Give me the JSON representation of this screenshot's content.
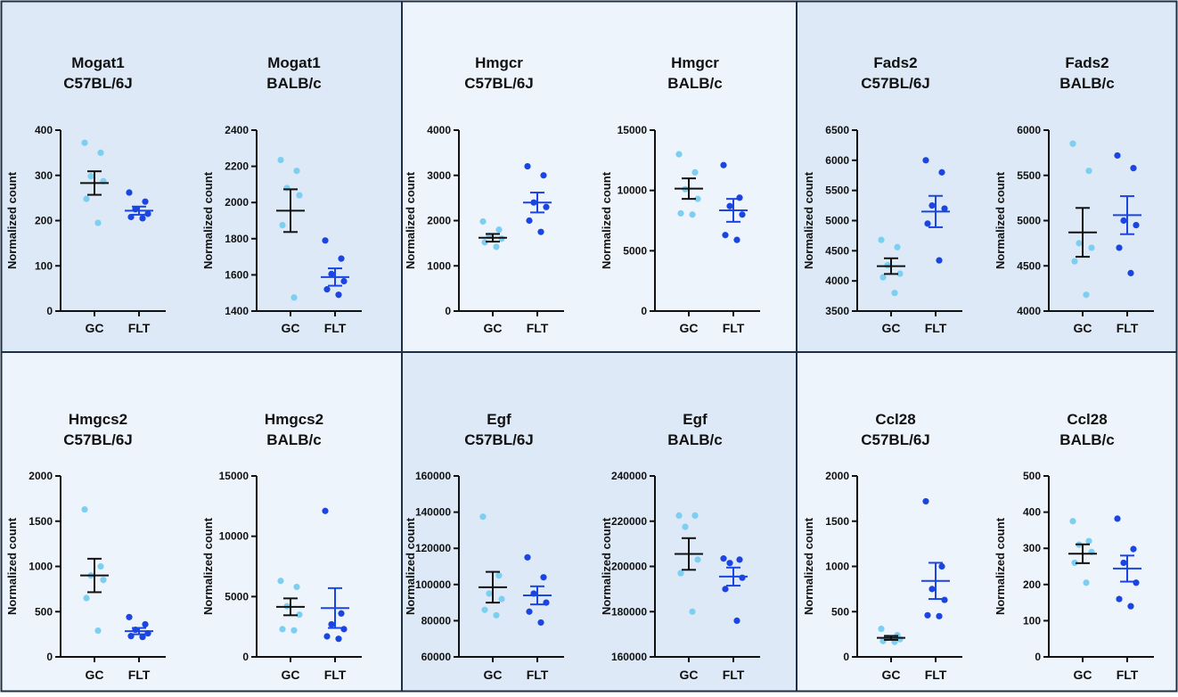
{
  "figure": {
    "colors": {
      "panel_dark": "#dde9f6",
      "panel_light": "#eef4fb",
      "border": "#1d2f45",
      "gc_points": "#7dcff1",
      "flt_points": "#1b45e0",
      "gc_bar": "#111111",
      "flt_bar": "#1b45e0"
    }
  },
  "chart_data": [
    {
      "type": "scatter",
      "gene": "Mogat1",
      "strain": "C57BL/6J",
      "title": [
        "Mogat1",
        "C57BL/6J"
      ],
      "ylabel": "Normalized count",
      "categories": [
        "GC",
        "FLT"
      ],
      "ylim": [
        0,
        400
      ],
      "yticks": [
        0,
        100,
        200,
        300,
        400
      ],
      "series": [
        {
          "name": "GC",
          "values": [
            372,
            350,
            298,
            287,
            248,
            195
          ],
          "mean": 283,
          "sem": 26
        },
        {
          "name": "FLT",
          "values": [
            262,
            242,
            225,
            215,
            208,
            205
          ],
          "mean": 222,
          "sem": 9
        }
      ]
    },
    {
      "type": "scatter",
      "gene": "Mogat1",
      "strain": "BALB/c",
      "title": [
        "Mogat1",
        "BALB/c"
      ],
      "ylabel": "Normalized count",
      "categories": [
        "GC",
        "FLT"
      ],
      "ylim": [
        1400,
        2400
      ],
      "yticks": [
        1400,
        1600,
        1800,
        2000,
        2200,
        2400
      ],
      "series": [
        {
          "name": "GC",
          "values": [
            2235,
            2175,
            2080,
            2040,
            1875,
            1475
          ],
          "mean": 1955,
          "sem": 118
        },
        {
          "name": "FLT",
          "values": [
            1790,
            1690,
            1605,
            1565,
            1520,
            1490
          ],
          "mean": 1588,
          "sem": 48
        }
      ]
    },
    {
      "type": "scatter",
      "gene": "Hmgcr",
      "strain": "C57BL/6J",
      "title": [
        "Hmgcr",
        "C57BL/6J"
      ],
      "ylabel": "Normalized count",
      "categories": [
        "GC",
        "FLT"
      ],
      "ylim": [
        0,
        4000
      ],
      "yticks": [
        0,
        1000,
        2000,
        3000,
        4000
      ],
      "series": [
        {
          "name": "GC",
          "values": [
            1980,
            1800,
            1660,
            1600,
            1520,
            1420
          ],
          "mean": 1620,
          "sem": 85
        },
        {
          "name": "FLT",
          "values": [
            3200,
            3000,
            2400,
            2300,
            2000,
            1750
          ],
          "mean": 2400,
          "sem": 220
        }
      ]
    },
    {
      "type": "scatter",
      "gene": "Hmgcr",
      "strain": "BALB/c",
      "title": [
        "Hmgcr",
        "BALB/c"
      ],
      "ylabel": "Normalized count",
      "categories": [
        "GC",
        "FLT"
      ],
      "ylim": [
        0,
        15000
      ],
      "yticks": [
        0,
        5000,
        10000,
        15000
      ],
      "series": [
        {
          "name": "GC",
          "values": [
            13000,
            11500,
            10100,
            9300,
            8100,
            8000
          ],
          "mean": 10150,
          "sem": 850
        },
        {
          "name": "FLT",
          "values": [
            12100,
            9400,
            8700,
            8000,
            6300,
            5900
          ],
          "mean": 8350,
          "sem": 950
        }
      ]
    },
    {
      "type": "scatter",
      "gene": "Fads2",
      "strain": "C57BL/6J",
      "title": [
        "Fads2",
        "C57BL/6J"
      ],
      "ylabel": "Normalized count",
      "categories": [
        "GC",
        "FLT"
      ],
      "ylim": [
        3500,
        6500
      ],
      "yticks": [
        3500,
        4000,
        4500,
        5000,
        5500,
        6000,
        6500
      ],
      "series": [
        {
          "name": "GC",
          "values": [
            4680,
            4560,
            4260,
            4120,
            4060,
            3800
          ],
          "mean": 4245,
          "sem": 130
        },
        {
          "name": "FLT",
          "values": [
            6000,
            5800,
            5250,
            5200,
            4950,
            4340
          ],
          "mean": 5150,
          "sem": 260
        }
      ]
    },
    {
      "type": "scatter",
      "gene": "Fads2",
      "strain": "BALB/c",
      "title": [
        "Fads2",
        "BALB/c"
      ],
      "ylabel": "Normalized count",
      "categories": [
        "GC",
        "FLT"
      ],
      "ylim": [
        4000,
        6000
      ],
      "yticks": [
        4000,
        4500,
        5000,
        5500,
        6000
      ],
      "series": [
        {
          "name": "GC",
          "values": [
            5850,
            5550,
            4750,
            4700,
            4550,
            4180
          ],
          "mean": 4870,
          "sem": 270
        },
        {
          "name": "FLT",
          "values": [
            5720,
            5580,
            5000,
            4950,
            4700,
            4420
          ],
          "mean": 5060,
          "sem": 210
        }
      ]
    },
    {
      "type": "scatter",
      "gene": "Hmgcs2",
      "strain": "C57BL/6J",
      "title": [
        "Hmgcs2",
        "C57BL/6J"
      ],
      "ylabel": "Normalized count",
      "categories": [
        "GC",
        "FLT"
      ],
      "ylim": [
        0,
        2000
      ],
      "yticks": [
        0,
        500,
        1000,
        1500,
        2000
      ],
      "series": [
        {
          "name": "GC",
          "values": [
            1630,
            1000,
            900,
            850,
            650,
            290
          ],
          "mean": 900,
          "sem": 185
        },
        {
          "name": "FLT",
          "values": [
            440,
            360,
            300,
            260,
            230,
            220
          ],
          "mean": 285,
          "sem": 35
        }
      ]
    },
    {
      "type": "scatter",
      "gene": "Hmgcs2",
      "strain": "BALB/c",
      "title": [
        "Hmgcs2",
        "BALB/c"
      ],
      "ylabel": "Normalized count",
      "categories": [
        "GC",
        "FLT"
      ],
      "ylim": [
        0,
        15000
      ],
      "yticks": [
        0,
        5000,
        10000,
        15000
      ],
      "series": [
        {
          "name": "GC",
          "values": [
            6300,
            5800,
            4200,
            3500,
            2300,
            2200
          ],
          "mean": 4150,
          "sem": 700
        },
        {
          "name": "FLT",
          "values": [
            12100,
            3600,
            2700,
            2300,
            1700,
            1500
          ],
          "mean": 4050,
          "sem": 1650
        }
      ]
    },
    {
      "type": "scatter",
      "gene": "Egf",
      "strain": "C57BL/6J",
      "title": [
        "Egf",
        "C57BL/6J"
      ],
      "ylabel": "Normalized count",
      "categories": [
        "GC",
        "FLT"
      ],
      "ylim": [
        60000,
        160000
      ],
      "yticks": [
        60000,
        80000,
        100000,
        120000,
        140000,
        160000
      ],
      "series": [
        {
          "name": "GC",
          "values": [
            137500,
            105000,
            95000,
            92000,
            86000,
            83000
          ],
          "mean": 98500,
          "sem": 8500
        },
        {
          "name": "FLT",
          "values": [
            115000,
            104000,
            95000,
            90000,
            85000,
            79000
          ],
          "mean": 94000,
          "sem": 5000
        }
      ]
    },
    {
      "type": "scatter",
      "gene": "Egf",
      "strain": "BALB/c",
      "title": [
        "Egf",
        "BALB/c"
      ],
      "ylabel": "Normalized count",
      "categories": [
        "GC",
        "FLT"
      ],
      "ylim": [
        160000,
        240000
      ],
      "yticks": [
        160000,
        180000,
        200000,
        220000,
        240000
      ],
      "series": [
        {
          "name": "GC",
          "values": [
            222500,
            222500,
            217500,
            203000,
            197000,
            180000
          ],
          "mean": 205500,
          "sem": 7000
        },
        {
          "name": "FLT",
          "values": [
            203500,
            203000,
            201500,
            195000,
            190000,
            176000
          ],
          "mean": 195500,
          "sem": 4000
        }
      ]
    },
    {
      "type": "scatter",
      "gene": "Ccl28",
      "strain": "C57BL/6J",
      "title": [
        "Ccl28",
        "C57BL/6J"
      ],
      "ylabel": "Normalized count",
      "categories": [
        "GC",
        "FLT"
      ],
      "ylim": [
        0,
        2000
      ],
      "yticks": [
        0,
        500,
        1000,
        1500,
        2000
      ],
      "series": [
        {
          "name": "GC",
          "values": [
            310,
            240,
            210,
            195,
            175,
            165
          ],
          "mean": 210,
          "sem": 22
        },
        {
          "name": "FLT",
          "values": [
            1720,
            1000,
            750,
            630,
            460,
            450
          ],
          "mean": 840,
          "sem": 200
        }
      ]
    },
    {
      "type": "scatter",
      "gene": "Ccl28",
      "strain": "BALB/c",
      "title": [
        "Ccl28",
        "BALB/c"
      ],
      "ylabel": "Normalized count",
      "categories": [
        "GC",
        "FLT"
      ],
      "ylim": [
        0,
        500
      ],
      "yticks": [
        0,
        100,
        200,
        300,
        400,
        500
      ],
      "series": [
        {
          "name": "GC",
          "values": [
            375,
            320,
            310,
            290,
            260,
            205
          ],
          "mean": 285,
          "sem": 26
        },
        {
          "name": "FLT",
          "values": [
            382,
            298,
            260,
            205,
            160,
            140
          ],
          "mean": 244,
          "sem": 36
        }
      ]
    }
  ]
}
